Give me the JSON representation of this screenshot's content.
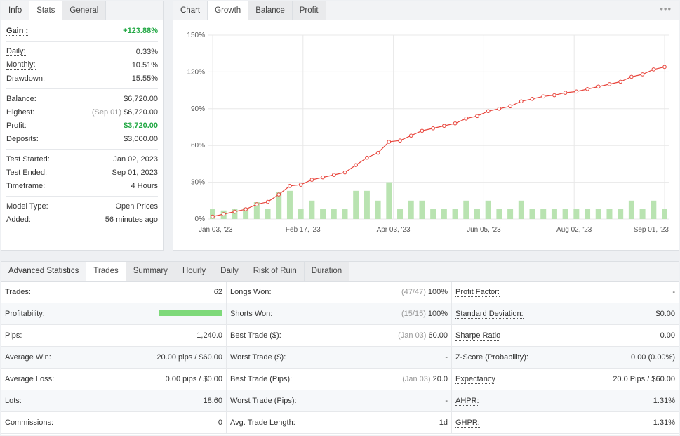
{
  "info": {
    "tabs": [
      "Info",
      "Stats",
      "General"
    ],
    "gain": {
      "label": "Gain :",
      "value": "+123.88%"
    },
    "group1": [
      {
        "label": "Daily:",
        "value": "0.33%",
        "u": true
      },
      {
        "label": "Monthly:",
        "value": "10.51%",
        "u": true
      },
      {
        "label": "Drawdown:",
        "value": "15.55%",
        "u": false
      }
    ],
    "group2": [
      {
        "label": "Balance:",
        "value": "$6,720.00",
        "sub": ""
      },
      {
        "label": "Highest:",
        "value": "$6,720.00",
        "sub": "(Sep 01)"
      },
      {
        "label": "Profit:",
        "value": "$3,720.00",
        "sub": "",
        "green": true
      },
      {
        "label": "Deposits:",
        "value": "$3,000.00",
        "sub": ""
      }
    ],
    "group3": [
      {
        "label": "Test Started:",
        "value": "Jan 02, 2023"
      },
      {
        "label": "Test Ended:",
        "value": "Sep 01, 2023"
      },
      {
        "label": "Timeframe:",
        "value": "4 Hours"
      }
    ],
    "group4": [
      {
        "label": "Model Type:",
        "value": "Open Prices"
      },
      {
        "label": "Added:",
        "value": "56 minutes ago"
      }
    ]
  },
  "chart": {
    "tabs": [
      "Chart",
      "Growth",
      "Balance",
      "Profit"
    ],
    "menu": "•••",
    "colors": {
      "line": "#e8453c",
      "bars": "#b9e3b1",
      "grid": "#e8e8e8"
    }
  },
  "chart_data": {
    "type": "line",
    "x_tick_labels": [
      "Jan 03, '23",
      "Feb 17, '23",
      "Apr 03, '23",
      "Jun 05, '23",
      "Aug 02, '23",
      "Sep 01, '23"
    ],
    "ylim": [
      0,
      150
    ],
    "y_ticks": [
      "0%",
      "30%",
      "60%",
      "90%",
      "120%",
      "150%"
    ],
    "series": [
      {
        "type": "line",
        "values": [
          2,
          4,
          6,
          8,
          12,
          14,
          20,
          27,
          28,
          32,
          34,
          36,
          38,
          44,
          50,
          54,
          63,
          64,
          68,
          72,
          74,
          76,
          78,
          82,
          84,
          88,
          90,
          92,
          96,
          98,
          100,
          101,
          103,
          104,
          106,
          108,
          110,
          112,
          116,
          118,
          122,
          124
        ]
      },
      {
        "type": "bar",
        "values": [
          8,
          7,
          8,
          9,
          14,
          8,
          22,
          23,
          8,
          15,
          8,
          8,
          8,
          23,
          23,
          15,
          30,
          8,
          15,
          15,
          8,
          8,
          8,
          15,
          8,
          15,
          8,
          8,
          15,
          8,
          8,
          8,
          8,
          8,
          8,
          8,
          8,
          8,
          15,
          8,
          15,
          8
        ]
      }
    ],
    "grid": true
  },
  "adv": {
    "tabs": [
      "Advanced Statistics",
      "Trades",
      "Summary",
      "Hourly",
      "Daily",
      "Risk of Ruin",
      "Duration"
    ],
    "rows": [
      [
        {
          "label": "Trades:",
          "value": "62"
        },
        {
          "label": "Longs Won:",
          "value": "100%",
          "sub": "(47/47)"
        },
        {
          "label": "Profit Factor:",
          "value": "-",
          "u": true
        }
      ],
      [
        {
          "label": "Profitability:",
          "value": "",
          "bar": 1.0
        },
        {
          "label": "Shorts Won:",
          "value": "100%",
          "sub": "(15/15)"
        },
        {
          "label": "Standard Deviation:",
          "value": "$0.00",
          "u": true
        }
      ],
      [
        {
          "label": "Pips:",
          "value": "1,240.0"
        },
        {
          "label": "Best Trade ($):",
          "value": "60.00",
          "sub": "(Jan 03)"
        },
        {
          "label": "Sharpe Ratio",
          "value": "0.00",
          "u": true
        }
      ],
      [
        {
          "label": "Average Win:",
          "value": "20.00 pips / $60.00"
        },
        {
          "label": "Worst Trade ($):",
          "value": "-"
        },
        {
          "label": "Z-Score (Probability):",
          "value": "0.00 (0.00%)",
          "u": true
        }
      ],
      [
        {
          "label": "Average Loss:",
          "value": "0.00 pips / $0.00"
        },
        {
          "label": "Best Trade (Pips):",
          "value": "20.0",
          "sub": "(Jan 03)"
        },
        {
          "label": "Expectancy",
          "value": "20.0 Pips / $60.00",
          "u": true
        }
      ],
      [
        {
          "label": "Lots:",
          "value": "18.60"
        },
        {
          "label": "Worst Trade (Pips):",
          "value": "-"
        },
        {
          "label": "AHPR:",
          "value": "1.31%",
          "u": true
        }
      ],
      [
        {
          "label": "Commissions:",
          "value": "0"
        },
        {
          "label": "Avg. Trade Length:",
          "value": "1d"
        },
        {
          "label": "GHPR:",
          "value": "1.31%",
          "u": true
        }
      ]
    ]
  }
}
